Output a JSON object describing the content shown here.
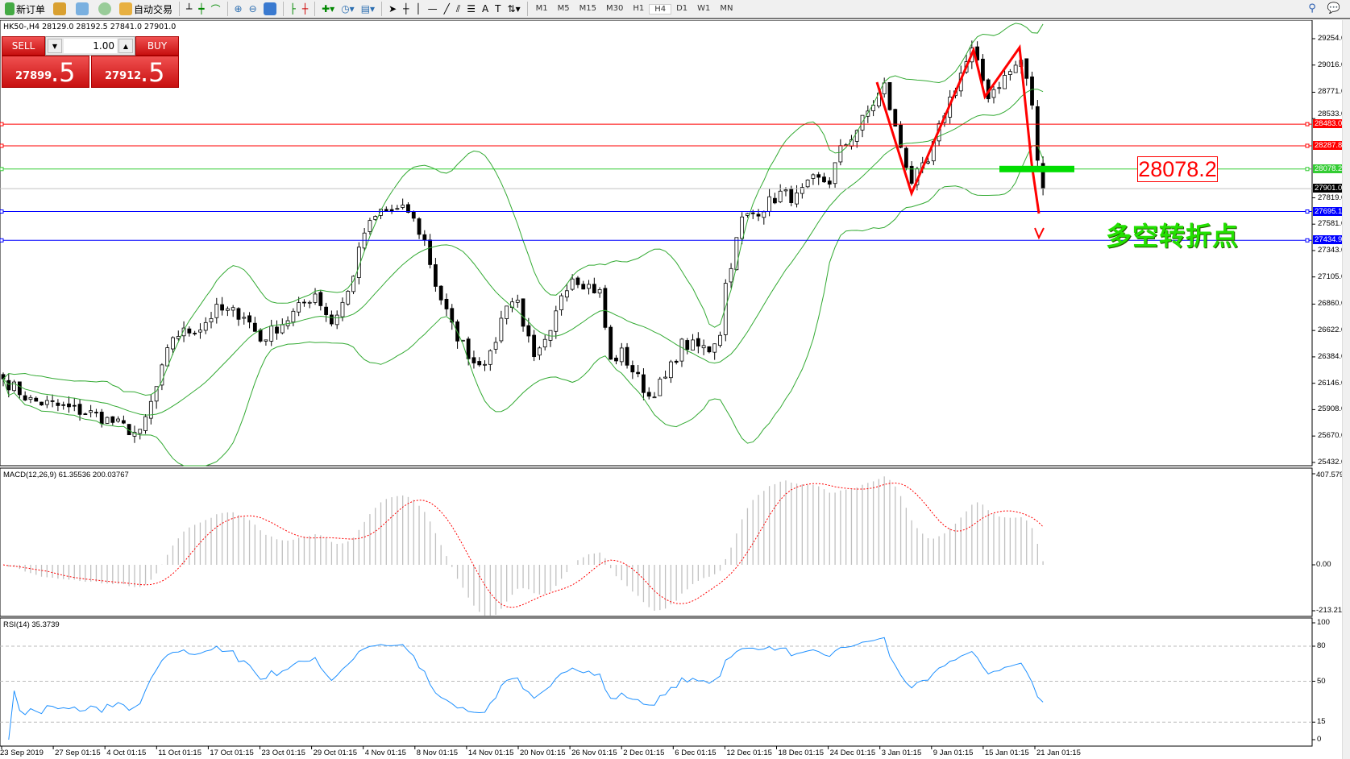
{
  "toolbar": {
    "new_order": "新订单",
    "auto_trading": "自动交易",
    "timeframes": [
      "M1",
      "M5",
      "M15",
      "M30",
      "H1",
      "H4",
      "D1",
      "W1",
      "MN"
    ],
    "active_timeframe": "H4"
  },
  "chart": {
    "symbol_info": "HK50-,H4  28129.0 28192.5 27841.0 27901.0"
  },
  "trade_panel": {
    "sell_label": "SELL",
    "buy_label": "BUY",
    "lot": "1.00",
    "sell_big": "27899",
    "sell_small": ".5",
    "buy_big": "27912",
    "buy_small": ".5"
  },
  "price_axis": [
    "29254.0",
    "29016.0",
    "28771.0",
    "28533.0",
    "27819.0",
    "27581.0",
    "27343.0",
    "27105.0",
    "26860.0",
    "26622.0",
    "26384.0",
    "26146.0",
    "25908.0",
    "25670.0",
    "25432.0"
  ],
  "hlines": [
    {
      "price": 28483.0,
      "label": "28483.0",
      "color": "#ff0000"
    },
    {
      "price": 28287.8,
      "label": "28287.8",
      "color": "#ff0000"
    },
    {
      "price": 28078.2,
      "label": "28078.2",
      "color": "#33cc33"
    },
    {
      "price": 27901.0,
      "label": "27901.0",
      "color": "#000000",
      "line": "#c0c0c0"
    },
    {
      "price": 27695.1,
      "label": "27695.1",
      "color": "#0000ff"
    },
    {
      "price": 27434.9,
      "label": "27434.9",
      "color": "#0000ff"
    }
  ],
  "annotations": {
    "price_box": "28078.2",
    "note": "多空转折点",
    "zigzag_color": "#ff0000",
    "zone_color": "#00dd00"
  },
  "macd": {
    "label": "MACD(12,26,9) 61.35536 200.03767",
    "axis": [
      "407.57984",
      "0.00",
      "-213.2171"
    ],
    "max": 407.57984,
    "min": -213.2171
  },
  "rsi": {
    "label": "RSI(14) 35.3739",
    "axis": [
      "100",
      "80",
      "50",
      "15",
      "0"
    ],
    "levels": [
      80,
      50,
      15
    ]
  },
  "dates": [
    "23 Sep 2019",
    "27 Sep 01:15",
    "4 Oct 01:15",
    "11 Oct 01:15",
    "17 Oct 01:15",
    "23 Oct 01:15",
    "29 Oct 01:15",
    "4 Nov 01:15",
    "8 Nov 01:15",
    "14 Nov 01:15",
    "20 Nov 01:15",
    "26 Nov 01:15",
    "2 Dec 01:15",
    "6 Dec 01:15",
    "12 Dec 01:15",
    "18 Dec 01:15",
    "24 Dec 01:15",
    "3 Jan 01:15",
    "9 Jan 01:15",
    "15 Jan 01:15",
    "21 Jan 01:15"
  ],
  "chart_data": {
    "type": "candlestick",
    "symbol": "HK50-",
    "timeframe": "H4",
    "ylim": [
      25432.0,
      29254.0
    ],
    "last": {
      "open": 28129.0,
      "high": 28192.5,
      "low": 27841.0,
      "close": 27901.0
    },
    "close_keypoints": [
      [
        0,
        26185
      ],
      [
        5,
        25990
      ],
      [
        9,
        25950
      ],
      [
        16,
        25874
      ],
      [
        20,
        25796
      ],
      [
        25,
        25680
      ],
      [
        28,
        26107
      ],
      [
        31,
        26573
      ],
      [
        36,
        26650
      ],
      [
        39,
        26806
      ],
      [
        44,
        26768
      ],
      [
        47,
        26535
      ],
      [
        52,
        26729
      ],
      [
        57,
        26962
      ],
      [
        60,
        26690
      ],
      [
        63,
        26962
      ],
      [
        66,
        27506
      ],
      [
        69,
        27700
      ],
      [
        74,
        27700
      ],
      [
        77,
        27428
      ],
      [
        79,
        27040
      ],
      [
        82,
        26651
      ],
      [
        86,
        26340
      ],
      [
        89,
        26380
      ],
      [
        92,
        26885
      ],
      [
        94,
        26885
      ],
      [
        97,
        26340
      ],
      [
        100,
        26573
      ],
      [
        102,
        26962
      ],
      [
        104,
        27117
      ],
      [
        109,
        26962
      ],
      [
        111,
        26340
      ],
      [
        113,
        26418
      ],
      [
        118,
        26030
      ],
      [
        121,
        26185
      ],
      [
        124,
        26496
      ],
      [
        129,
        26457
      ],
      [
        131,
        26613
      ],
      [
        132,
        27040
      ],
      [
        135,
        27622
      ],
      [
        139,
        27739
      ],
      [
        142,
        27856
      ],
      [
        145,
        27817
      ],
      [
        148,
        27972
      ],
      [
        151,
        27972
      ],
      [
        153,
        28244
      ],
      [
        156,
        28438
      ],
      [
        158,
        28594
      ],
      [
        161,
        28827
      ],
      [
        163,
        28438
      ],
      [
        166,
        27972
      ],
      [
        169,
        28127
      ],
      [
        172,
        28594
      ],
      [
        175,
        28943
      ],
      [
        177,
        29137
      ],
      [
        180,
        28749
      ],
      [
        183,
        28904
      ],
      [
        186,
        29059
      ],
      [
        188,
        28671
      ],
      [
        189,
        28127
      ],
      [
        190,
        27901
      ]
    ],
    "indicators": {
      "bollinger": {
        "period": 20,
        "deviation": 2,
        "color": "#33aa33"
      },
      "macd": {
        "fast": 12,
        "slow": 26,
        "signal": 9,
        "hist_color": "#c0c0c0",
        "signal_color": "#ff0000"
      },
      "rsi": {
        "period": 14,
        "color": "#1e90ff"
      }
    }
  }
}
